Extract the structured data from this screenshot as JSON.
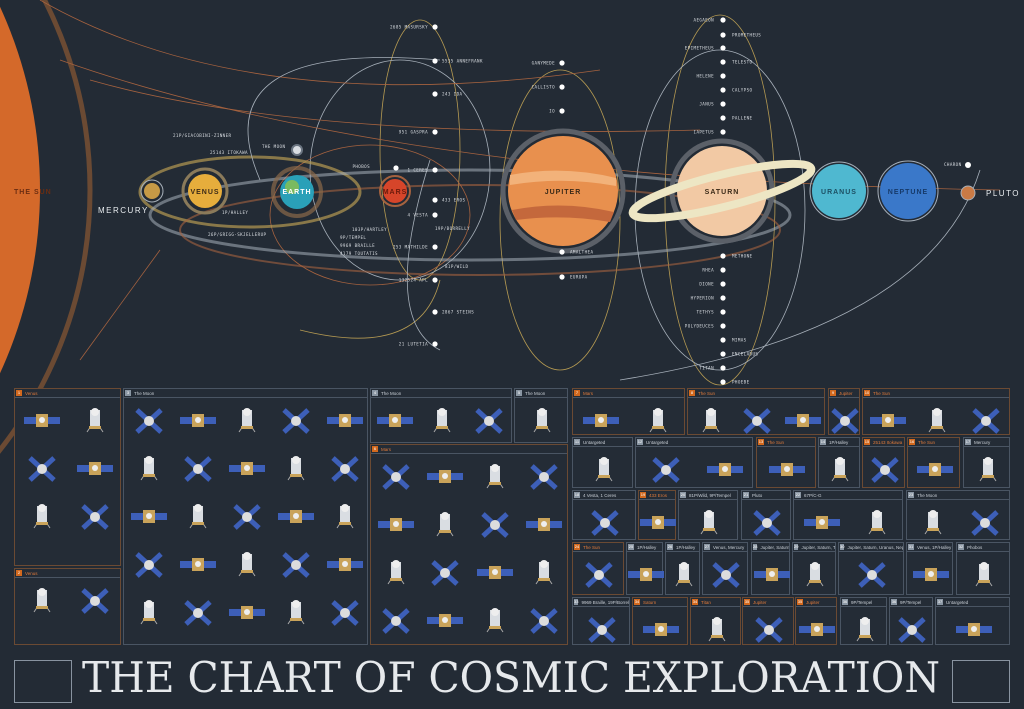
{
  "title": "THE CHART OF COSMIC EXPLORATION",
  "colors": {
    "background": "#232b35",
    "sun": "#d4692a",
    "orbit_gold": "#b59a52",
    "orbit_grey": "#a7b0ba",
    "orbit_rust": "#a5623f",
    "panel_blue": "#3d5fb8"
  },
  "bodies": {
    "sun": "THE SUN",
    "mercury": "MERCURY",
    "venus": "VENUS",
    "earth": "EARTH",
    "moon": "THE MOON",
    "mars": "MARS",
    "jupiter": "JUPITER",
    "saturn": "SATURN",
    "uranus": "URANUS",
    "neptune": "NEPTUNE",
    "pluto": "PLUTO",
    "charon": "CHARON"
  },
  "jupiter_moons": [
    "GANYMEDE",
    "CALLISTO",
    "IO",
    "AMALTHEA",
    "EUROPA"
  ],
  "saturn_moons_upper": [
    "AEGAEON",
    "PROMETHEUS",
    "EPIMETHEUS",
    "TELESTO",
    "HELENE",
    "CALYPSO",
    "JANUS",
    "PALLENE",
    "IAPETUS"
  ],
  "saturn_moons_lower": [
    "METHONE",
    "RHEA",
    "DIONE",
    "HYPERION",
    "TETHYS",
    "POLYDEUCES",
    "MIMAS",
    "ENCELADUS",
    "TITAN",
    "PHOEBE"
  ],
  "small_bodies": [
    "2685 MASURSKY",
    "5535 ANNEFRANK",
    "243 IDA",
    "951 GASPRA",
    "1 CERES",
    "433 EROS",
    "4 VESTA",
    "253 MATHILDE",
    "132524 APL",
    "2867 STEINS",
    "21 LUTETIA",
    "PHOBOS"
  ],
  "comets": [
    "21P/GIACOBINI-ZINNER",
    "25143 ITOKAWA",
    "1P/HALLEY",
    "26P/GRIGG-SKJELLERUP",
    "103P/HARTLEY",
    "9P/TEMPEL",
    "9969 BRAILLE",
    "4179 TOUTATIS",
    "19P/BORRELLY",
    "81P/WILD"
  ],
  "panels": [
    {
      "n": "1",
      "title": "Venus",
      "warm": true
    },
    {
      "n": "2",
      "title": "Venus",
      "warm": true
    },
    {
      "n": "3",
      "title": "The Moon",
      "warm": false
    },
    {
      "n": "4",
      "title": "The Moon",
      "warm": false
    },
    {
      "n": "5",
      "title": "The Moon",
      "warm": false
    },
    {
      "n": "6",
      "title": "Mars",
      "warm": true
    },
    {
      "n": "7",
      "title": "Mars",
      "warm": true
    },
    {
      "n": "8",
      "title": "The Sun",
      "warm": true
    },
    {
      "n": "9",
      "title": "Jupiter",
      "warm": true
    },
    {
      "n": "10",
      "title": "The Sun",
      "warm": true
    },
    {
      "n": "11",
      "title": "Untargeted",
      "warm": false
    },
    {
      "n": "12",
      "title": "Untargeted",
      "warm": false
    },
    {
      "n": "13",
      "title": "The Sun",
      "warm": true
    },
    {
      "n": "14",
      "title": "1P/Halley",
      "warm": false
    },
    {
      "n": "15",
      "title": "25143 Itokawa",
      "warm": true
    },
    {
      "n": "16",
      "title": "The Sun",
      "warm": true
    },
    {
      "n": "17",
      "title": "Mercury",
      "warm": false
    },
    {
      "n": "18",
      "title": "4 Vesta, 1 Ceres",
      "warm": false
    },
    {
      "n": "19",
      "title": "433 Eros",
      "warm": true
    },
    {
      "n": "20",
      "title": "81P/Wild, 9P/Tempel",
      "warm": false
    },
    {
      "n": "21",
      "title": "Pluto",
      "warm": false
    },
    {
      "n": "22",
      "title": "67P/C-G",
      "warm": false
    },
    {
      "n": "23",
      "title": "The Moon",
      "warm": false
    },
    {
      "n": "24",
      "title": "The Sun",
      "warm": true
    },
    {
      "n": "25",
      "title": "1P/Halley",
      "warm": false
    },
    {
      "n": "26",
      "title": "1P/Halley",
      "warm": false
    },
    {
      "n": "27",
      "title": "Venus, Mercury",
      "warm": false
    },
    {
      "n": "28",
      "title": "Jupiter, Saturn",
      "warm": false
    },
    {
      "n": "29",
      "title": "Jupiter, Saturn, Titan",
      "warm": false
    },
    {
      "n": "30",
      "title": "Jupiter, Saturn, Uranus, Neptune",
      "warm": false
    },
    {
      "n": "31",
      "title": "Venus, 1P/Halley",
      "warm": false
    },
    {
      "n": "32",
      "title": "Phobos",
      "warm": false
    },
    {
      "n": "33",
      "title": "9969 Braille, 19P/Borrelly",
      "warm": false
    },
    {
      "n": "34",
      "title": "Saturn",
      "warm": true
    },
    {
      "n": "34",
      "title": "Titan",
      "warm": true
    },
    {
      "n": "35",
      "title": "Jupiter",
      "warm": true
    },
    {
      "n": "35",
      "title": "Jupiter",
      "warm": true
    },
    {
      "n": "36",
      "title": "9P/Tempel",
      "warm": false
    },
    {
      "n": "36",
      "title": "9P/Tempel",
      "warm": false
    },
    {
      "n": "37",
      "title": "Untargeted",
      "warm": false
    }
  ]
}
